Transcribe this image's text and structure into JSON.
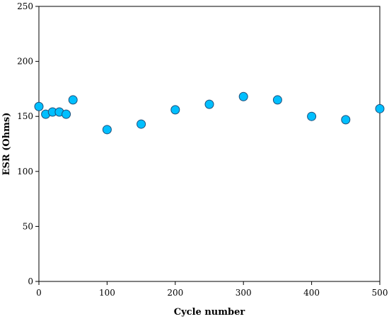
{
  "chart_data": {
    "type": "scatter",
    "title": "",
    "xlabel": "Cycle number",
    "ylabel": "ESR (Ohms)",
    "xlim": [
      0,
      500
    ],
    "ylim": [
      0,
      250
    ],
    "xticks": [
      0,
      100,
      200,
      300,
      400,
      500
    ],
    "yticks": [
      0,
      50,
      100,
      150,
      200,
      250
    ],
    "grid": false,
    "legend": "none",
    "marker_color": "#00BFFF",
    "marker_edge_color": "#1F4E79",
    "series": [
      {
        "points": [
          {
            "x": 0,
            "y": 159
          },
          {
            "x": 10,
            "y": 152
          },
          {
            "x": 20,
            "y": 154
          },
          {
            "x": 30,
            "y": 154
          },
          {
            "x": 40,
            "y": 152
          },
          {
            "x": 50,
            "y": 165
          },
          {
            "x": 100,
            "y": 138
          },
          {
            "x": 150,
            "y": 143
          },
          {
            "x": 200,
            "y": 156
          },
          {
            "x": 250,
            "y": 161
          },
          {
            "x": 300,
            "y": 168
          },
          {
            "x": 350,
            "y": 165
          },
          {
            "x": 400,
            "y": 150
          },
          {
            "x": 450,
            "y": 147
          },
          {
            "x": 500,
            "y": 157
          }
        ]
      }
    ]
  }
}
